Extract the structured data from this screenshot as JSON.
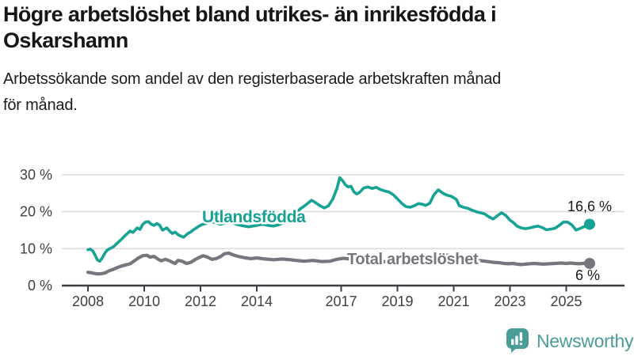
{
  "header": {
    "title_line1": "Högre arbetslöshet bland utrikes- än inrikesfödda i",
    "title_line2": "Oskarshamn",
    "subtitle_line1": "Arbetssökande som andel av den registerbaserade arbetskraften månad",
    "subtitle_line2": "för månad."
  },
  "chart_data": {
    "type": "line",
    "title": "Högre arbetslöshet bland utrikes- än inrikesfödda i Oskarshamn",
    "subtitle": "Arbetssökande som andel av den registerbaserade arbetskraften månad för månad.",
    "unit": "%",
    "xlabel": "",
    "ylabel": "",
    "grid": "horizontal",
    "legend_position": "inline-labels",
    "xlim": [
      2007.1,
      2027.1
    ],
    "ylim": [
      0,
      34.5
    ],
    "x_ticks": [
      {
        "value": 2008,
        "label": "2008"
      },
      {
        "value": 2010,
        "label": "2010"
      },
      {
        "value": 2012,
        "label": "2012"
      },
      {
        "value": 2014,
        "label": "2014"
      },
      {
        "value": 2017,
        "label": "2017"
      },
      {
        "value": 2019,
        "label": "2019"
      },
      {
        "value": 2021,
        "label": "2021"
      },
      {
        "value": 2023,
        "label": "2023"
      },
      {
        "value": 2025,
        "label": "2025"
      }
    ],
    "y_ticks": [
      {
        "value": 0,
        "label": "0 %"
      },
      {
        "value": 10,
        "label": "10 %"
      },
      {
        "value": 20,
        "label": "20 %"
      },
      {
        "value": 30,
        "label": "30 %"
      }
    ],
    "series": [
      {
        "name": "Utlandsfödda",
        "color": "#16a294",
        "end_label": "16,6 %",
        "end_value": 16.6,
        "points": [
          [
            2008.0,
            9.7
          ],
          [
            2008.08,
            9.9
          ],
          [
            2008.17,
            9.4
          ],
          [
            2008.25,
            8.3
          ],
          [
            2008.33,
            7.0
          ],
          [
            2008.42,
            6.6
          ],
          [
            2008.5,
            7.4
          ],
          [
            2008.58,
            8.5
          ],
          [
            2008.67,
            9.5
          ],
          [
            2008.75,
            9.9
          ],
          [
            2008.83,
            10.2
          ],
          [
            2008.92,
            10.6
          ],
          [
            2009.0,
            11.2
          ],
          [
            2009.1,
            11.9
          ],
          [
            2009.2,
            12.6
          ],
          [
            2009.3,
            13.4
          ],
          [
            2009.4,
            14.1
          ],
          [
            2009.5,
            14.8
          ],
          [
            2009.6,
            14.4
          ],
          [
            2009.75,
            15.6
          ],
          [
            2009.85,
            15.2
          ],
          [
            2009.95,
            16.6
          ],
          [
            2010.05,
            17.2
          ],
          [
            2010.15,
            17.3
          ],
          [
            2010.25,
            16.6
          ],
          [
            2010.35,
            16.3
          ],
          [
            2010.45,
            16.8
          ],
          [
            2010.55,
            16.3
          ],
          [
            2010.65,
            15.0
          ],
          [
            2010.8,
            15.6
          ],
          [
            2010.9,
            14.8
          ],
          [
            2011.0,
            14.1
          ],
          [
            2011.1,
            14.5
          ],
          [
            2011.2,
            13.8
          ],
          [
            2011.3,
            13.4
          ],
          [
            2011.4,
            13.1
          ],
          [
            2011.55,
            14.1
          ],
          [
            2011.65,
            14.5
          ],
          [
            2011.75,
            15.1
          ],
          [
            2011.85,
            15.6
          ],
          [
            2011.95,
            16.1
          ],
          [
            2012.05,
            16.5
          ],
          [
            2012.2,
            16.8
          ],
          [
            2012.4,
            17.3
          ],
          [
            2012.55,
            17.0
          ],
          [
            2012.7,
            16.6
          ],
          [
            2012.85,
            16.9
          ],
          [
            2013.0,
            17.4
          ],
          [
            2013.15,
            17.0
          ],
          [
            2013.3,
            16.5
          ],
          [
            2013.5,
            16.2
          ],
          [
            2013.7,
            15.9
          ],
          [
            2013.85,
            16.1
          ],
          [
            2014.0,
            16.3
          ],
          [
            2014.2,
            16.6
          ],
          [
            2014.4,
            16.3
          ],
          [
            2014.6,
            16.1
          ],
          [
            2014.8,
            16.5
          ],
          [
            2015.0,
            17.2
          ],
          [
            2015.2,
            18.3
          ],
          [
            2015.4,
            19.6
          ],
          [
            2015.55,
            20.8
          ],
          [
            2015.7,
            21.6
          ],
          [
            2015.85,
            22.5
          ],
          [
            2015.95,
            23.1
          ],
          [
            2016.1,
            22.4
          ],
          [
            2016.25,
            21.6
          ],
          [
            2016.4,
            21.0
          ],
          [
            2016.55,
            21.6
          ],
          [
            2016.7,
            23.4
          ],
          [
            2016.85,
            26.3
          ],
          [
            2016.95,
            29.2
          ],
          [
            2017.05,
            28.4
          ],
          [
            2017.15,
            27.3
          ],
          [
            2017.25,
            26.7
          ],
          [
            2017.35,
            26.9
          ],
          [
            2017.45,
            25.4
          ],
          [
            2017.55,
            24.8
          ],
          [
            2017.65,
            25.2
          ],
          [
            2017.8,
            26.4
          ],
          [
            2017.95,
            26.7
          ],
          [
            2018.1,
            26.3
          ],
          [
            2018.25,
            26.6
          ],
          [
            2018.4,
            26.0
          ],
          [
            2018.55,
            25.6
          ],
          [
            2018.7,
            25.3
          ],
          [
            2018.85,
            24.6
          ],
          [
            2019.0,
            23.5
          ],
          [
            2019.15,
            22.3
          ],
          [
            2019.3,
            21.4
          ],
          [
            2019.45,
            21.2
          ],
          [
            2019.6,
            21.6
          ],
          [
            2019.75,
            22.2
          ],
          [
            2019.9,
            22.0
          ],
          [
            2020.0,
            21.7
          ],
          [
            2020.15,
            22.3
          ],
          [
            2020.3,
            24.6
          ],
          [
            2020.45,
            25.9
          ],
          [
            2020.6,
            25.1
          ],
          [
            2020.75,
            24.5
          ],
          [
            2020.9,
            24.2
          ],
          [
            2021.0,
            23.8
          ],
          [
            2021.1,
            23.3
          ],
          [
            2021.2,
            21.6
          ],
          [
            2021.35,
            21.2
          ],
          [
            2021.5,
            20.9
          ],
          [
            2021.65,
            20.4
          ],
          [
            2021.8,
            20.0
          ],
          [
            2021.95,
            19.7
          ],
          [
            2022.1,
            19.4
          ],
          [
            2022.25,
            18.6
          ],
          [
            2022.4,
            18.0
          ],
          [
            2022.55,
            18.9
          ],
          [
            2022.7,
            19.7
          ],
          [
            2022.85,
            19.0
          ],
          [
            2023.0,
            17.7
          ],
          [
            2023.1,
            17.2
          ],
          [
            2023.25,
            16.1
          ],
          [
            2023.4,
            15.6
          ],
          [
            2023.55,
            15.4
          ],
          [
            2023.7,
            15.6
          ],
          [
            2023.85,
            15.9
          ],
          [
            2024.0,
            16.1
          ],
          [
            2024.15,
            15.7
          ],
          [
            2024.3,
            15.1
          ],
          [
            2024.45,
            15.3
          ],
          [
            2024.6,
            15.5
          ],
          [
            2024.75,
            16.3
          ],
          [
            2024.9,
            17.2
          ],
          [
            2025.05,
            17.2
          ],
          [
            2025.2,
            16.4
          ],
          [
            2025.35,
            15.0
          ],
          [
            2025.5,
            15.5
          ],
          [
            2025.65,
            16.0
          ],
          [
            2025.83,
            16.6
          ]
        ]
      },
      {
        "name": "Total arbetslöshet",
        "color": "#76767e",
        "end_label": "6 %",
        "end_value": 6.0,
        "points": [
          [
            2008.0,
            3.6
          ],
          [
            2008.15,
            3.4
          ],
          [
            2008.3,
            3.2
          ],
          [
            2008.45,
            3.2
          ],
          [
            2008.6,
            3.4
          ],
          [
            2008.75,
            4.0
          ],
          [
            2008.9,
            4.4
          ],
          [
            2009.05,
            4.9
          ],
          [
            2009.2,
            5.3
          ],
          [
            2009.35,
            5.6
          ],
          [
            2009.5,
            5.9
          ],
          [
            2009.65,
            6.7
          ],
          [
            2009.8,
            7.5
          ],
          [
            2009.95,
            8.1
          ],
          [
            2010.1,
            8.2
          ],
          [
            2010.2,
            7.7
          ],
          [
            2010.35,
            7.9
          ],
          [
            2010.5,
            7.1
          ],
          [
            2010.6,
            6.7
          ],
          [
            2010.75,
            7.1
          ],
          [
            2010.9,
            6.7
          ],
          [
            2011.0,
            6.3
          ],
          [
            2011.1,
            6.0
          ],
          [
            2011.2,
            6.8
          ],
          [
            2011.35,
            6.6
          ],
          [
            2011.5,
            6.0
          ],
          [
            2011.65,
            6.3
          ],
          [
            2011.8,
            7.0
          ],
          [
            2011.95,
            7.6
          ],
          [
            2012.1,
            8.1
          ],
          [
            2012.25,
            7.7
          ],
          [
            2012.4,
            7.1
          ],
          [
            2012.55,
            7.3
          ],
          [
            2012.7,
            7.8
          ],
          [
            2012.85,
            8.6
          ],
          [
            2013.0,
            8.8
          ],
          [
            2013.2,
            8.2
          ],
          [
            2013.4,
            7.8
          ],
          [
            2013.6,
            7.5
          ],
          [
            2013.8,
            7.3
          ],
          [
            2014.0,
            7.5
          ],
          [
            2014.3,
            7.2
          ],
          [
            2014.6,
            7.0
          ],
          [
            2014.9,
            7.2
          ],
          [
            2015.2,
            7.0
          ],
          [
            2015.4,
            6.8
          ],
          [
            2015.7,
            6.6
          ],
          [
            2016.0,
            6.8
          ],
          [
            2016.3,
            6.5
          ],
          [
            2016.6,
            6.6
          ],
          [
            2016.9,
            7.2
          ],
          [
            2017.1,
            7.4
          ],
          [
            2017.3,
            7.2
          ],
          [
            2017.6,
            7.0
          ],
          [
            2017.9,
            6.8
          ],
          [
            2018.2,
            6.6
          ],
          [
            2018.5,
            6.5
          ],
          [
            2018.8,
            6.3
          ],
          [
            2019.1,
            6.2
          ],
          [
            2019.4,
            6.0
          ],
          [
            2019.7,
            6.0
          ],
          [
            2020.0,
            6.3
          ],
          [
            2020.2,
            7.4
          ],
          [
            2020.4,
            8.2
          ],
          [
            2020.6,
            8.4
          ],
          [
            2020.8,
            8.2
          ],
          [
            2021.0,
            7.9
          ],
          [
            2021.2,
            7.6
          ],
          [
            2021.4,
            7.4
          ],
          [
            2021.6,
            7.1
          ],
          [
            2021.8,
            6.9
          ],
          [
            2022.0,
            6.7
          ],
          [
            2022.2,
            6.5
          ],
          [
            2022.4,
            6.3
          ],
          [
            2022.6,
            6.2
          ],
          [
            2022.8,
            6.0
          ],
          [
            2022.95,
            5.9
          ],
          [
            2023.1,
            6.0
          ],
          [
            2023.25,
            5.8
          ],
          [
            2023.4,
            5.7
          ],
          [
            2023.55,
            5.8
          ],
          [
            2023.7,
            5.9
          ],
          [
            2023.85,
            6.0
          ],
          [
            2024.0,
            5.9
          ],
          [
            2024.2,
            5.8
          ],
          [
            2024.4,
            5.9
          ],
          [
            2024.6,
            6.0
          ],
          [
            2024.8,
            6.1
          ],
          [
            2025.0,
            6.0
          ],
          [
            2025.15,
            6.1
          ],
          [
            2025.3,
            6.0
          ],
          [
            2025.45,
            5.9
          ],
          [
            2025.6,
            6.0
          ],
          [
            2025.83,
            6.0
          ]
        ]
      }
    ],
    "colors": {
      "grid": "#dcdcdc",
      "axis": "#3c3c42",
      "tick_label": "#3f3f46",
      "annotation": "#1a1a1a"
    }
  },
  "footer": {
    "brand": "Newsworthy",
    "logo_color": "#4a9c98"
  }
}
